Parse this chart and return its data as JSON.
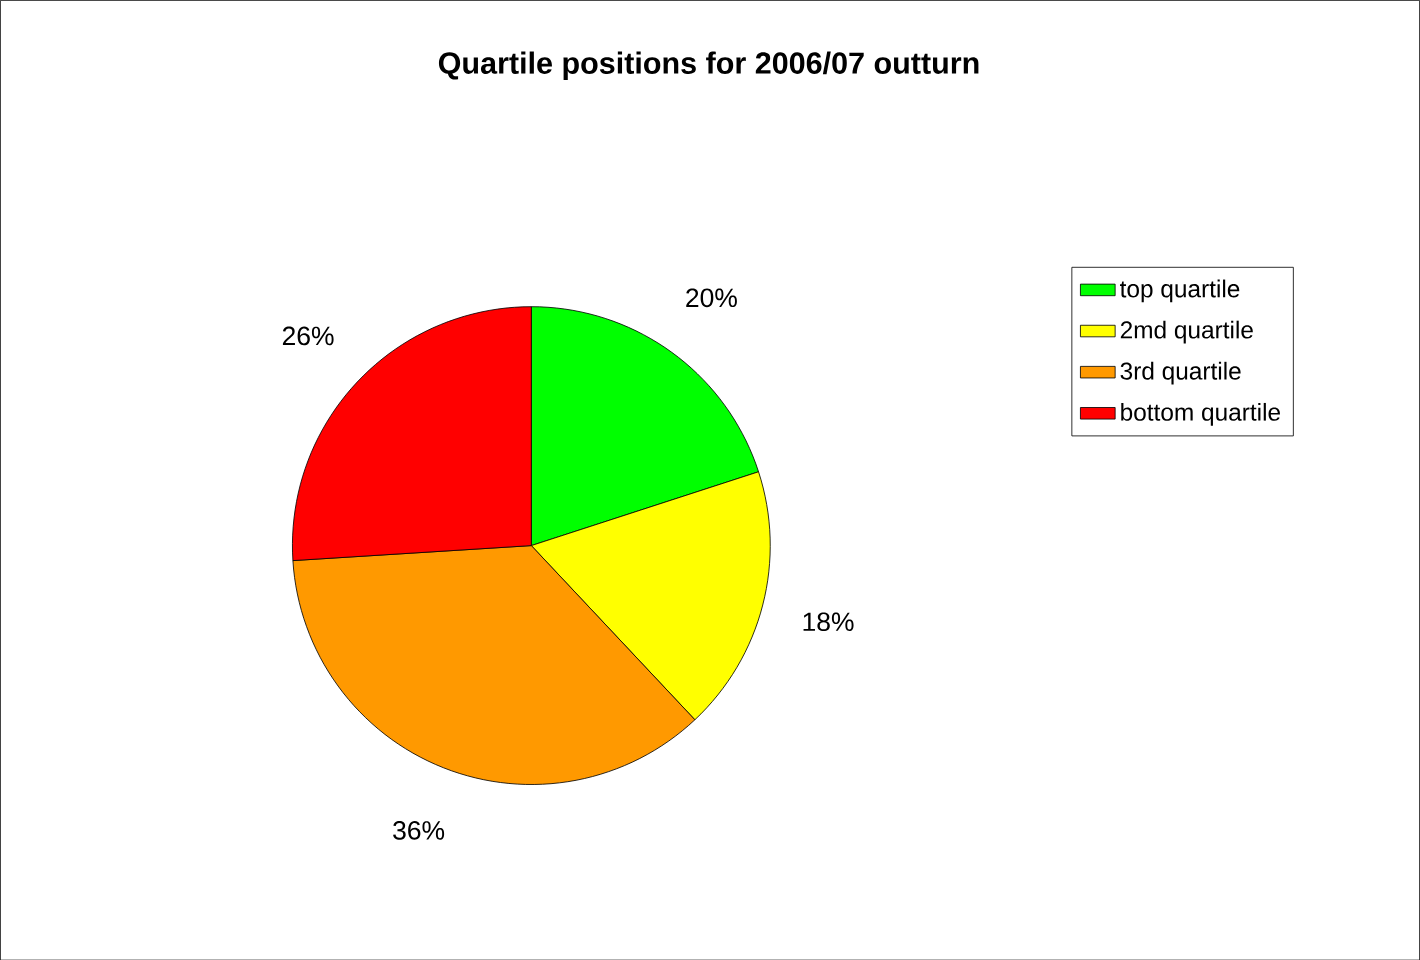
{
  "chart_data": {
    "type": "pie",
    "title": "Quartile positions for 2006/07 outturn",
    "categories": [
      "top quartile",
      "2md quartile",
      "3rd quartile",
      "bottom quartile"
    ],
    "values": [
      20,
      18,
      36,
      26
    ],
    "value_labels": [
      "20%",
      "18%",
      "36%",
      "26%"
    ],
    "colors": [
      "#00ff00",
      "#ffff00",
      "#ff9900",
      "#ff0000"
    ],
    "legend": "right"
  }
}
